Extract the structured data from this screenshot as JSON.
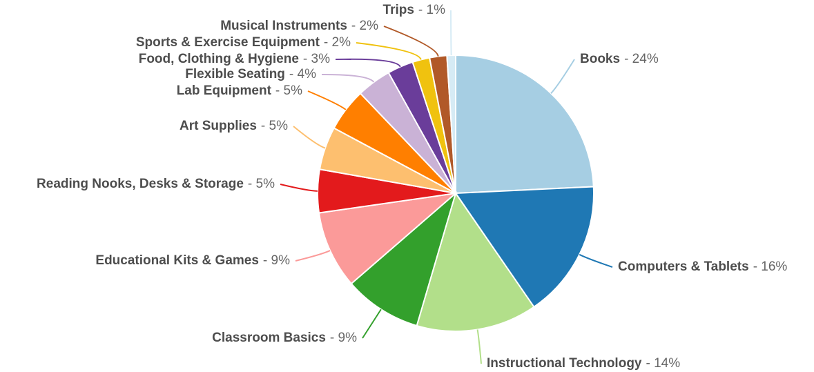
{
  "chart_data": {
    "type": "pie",
    "categories": [
      "Books",
      "Computers & Tablets",
      "Instructional Technology",
      "Classroom Basics",
      "Educational Kits & Games",
      "Reading Nooks, Desks & Storage",
      "Art Supplies",
      "Lab Equipment",
      "Flexible Seating",
      "Food, Clothing & Hygiene",
      "Sports & Exercise Equipment",
      "Musical Instruments",
      "Trips"
    ],
    "values": [
      24,
      16,
      14,
      9,
      9,
      5,
      5,
      5,
      4,
      3,
      2,
      2,
      1
    ],
    "value_labels": [
      "- 24%",
      "- 16%",
      "- 14%",
      "- 9%",
      "- 9%",
      "- 5%",
      "- 5%",
      "- 5%",
      "- 4%",
      "- 3%",
      "- 2%",
      "- 2%",
      "- 1%"
    ],
    "colors": [
      "#a6cee3",
      "#1f78b4",
      "#b2df8a",
      "#33a02c",
      "#fb9a99",
      "#e31a1c",
      "#fdbf6f",
      "#ff7f00",
      "#cab2d6",
      "#6a3d9a",
      "#f0c20f",
      "#b15928",
      "#d6ebf5"
    ]
  }
}
